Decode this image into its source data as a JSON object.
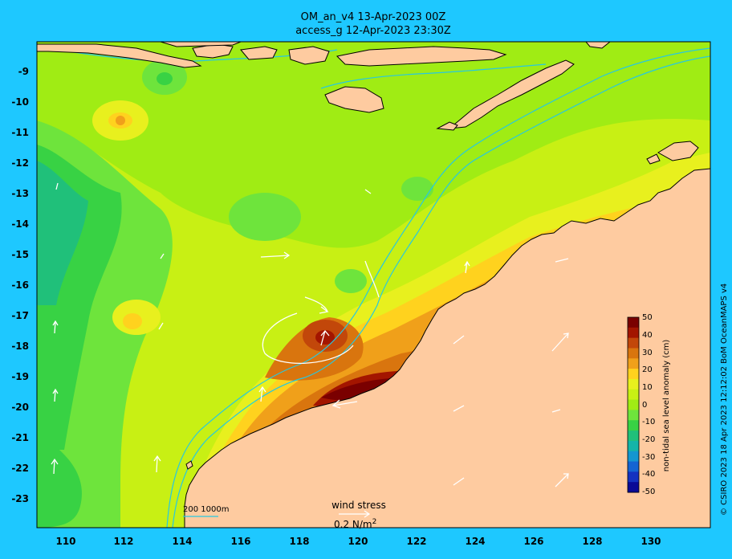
{
  "title": {
    "line1": "OM_an_v4  13-Apr-2023 00Z",
    "line2": "access_g 12-Apr-2023 23:30Z"
  },
  "axes": {
    "lon_ticks": [
      "110",
      "112",
      "114",
      "116",
      "118",
      "120",
      "122",
      "124",
      "126",
      "128",
      "130"
    ],
    "lat_ticks": [
      "-9",
      "-10",
      "-11",
      "-12",
      "-13",
      "-14",
      "-15",
      "-16",
      "-17",
      "-18",
      "-19",
      "-20",
      "-21",
      "-22",
      "-23"
    ]
  },
  "colorbar": {
    "label": "non-tidal sea level anomaly (cm)",
    "ticks": [
      "50",
      "40",
      "30",
      "20",
      "10",
      "0",
      "-10",
      "-20",
      "-30",
      "-40",
      "-50"
    ],
    "colors": [
      "#7a0000",
      "#a31500",
      "#c2470a",
      "#d9750e",
      "#f0a01a",
      "#ffd21e",
      "#e8f01e",
      "#c8f014",
      "#a0ec14",
      "#6ee43c",
      "#38d244",
      "#20c07a",
      "#14b4a8",
      "#1496d0",
      "#1464d2",
      "#1432c0",
      "#0a0a96"
    ]
  },
  "legend": {
    "contours_label": "200  1000m",
    "wind_title": "wind stress",
    "wind_value": "0.2 N/m",
    "wind_unit_sup": "2"
  },
  "credit": "© CSIRO 2023  18 Apr 2023 12:12:02 BoM OceanMAPS v4",
  "colors": {
    "background": "#1ec8ff",
    "land": "#fecba0",
    "coast": "#000000",
    "isobath": "#27c8e0"
  }
}
